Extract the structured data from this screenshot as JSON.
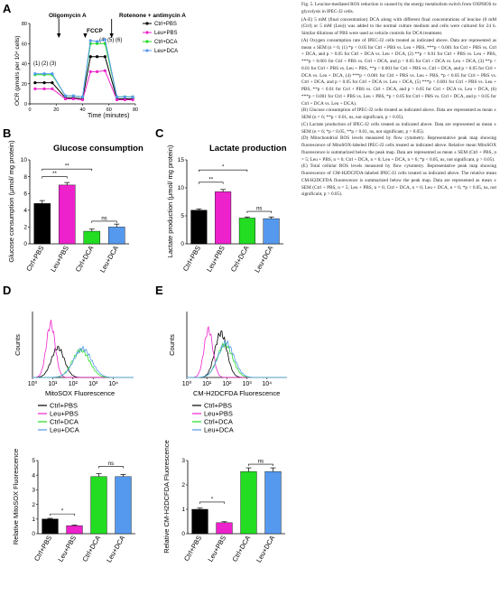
{
  "panels": {
    "A": {
      "letter": "A",
      "annotations": {
        "oligomycin": "Oligomycin A",
        "fccp": "FCCP",
        "rotenone": "Rotenone + antimycin A"
      },
      "points_left": "(1) (2) (3)",
      "points_right": "(4) (5) (6)",
      "ylabel": "OCR (pmol/s per 10⁴ cells)",
      "xlabel": "Time (minutes)",
      "legend": [
        "Ctrl+PBS",
        "Leu+PBS",
        "Ctrl+DCA",
        "Leu+DCA"
      ]
    },
    "B": {
      "letter": "B",
      "title": "Glucose consumption",
      "ylabel": "Glucose consumption (μmol/ mg protein)",
      "sig1": "**",
      "sig2": "**",
      "sig3": "ns"
    },
    "C": {
      "letter": "C",
      "title": "Lactate production",
      "ylabel": "Lactate production (μmol/ mg protein)",
      "sig1": "**",
      "sig2": "*",
      "sig3": "ns"
    },
    "D": {
      "letter": "D",
      "ylabel": "Counts",
      "xlabel": "MitoSOX Fluorescence",
      "bar_ylabel": "Relative MitoSOX Fluorescence",
      "sig1": "*",
      "sig2": "ns"
    },
    "E": {
      "letter": "E",
      "ylabel": "Counts",
      "xlabel": "CM-H2DCFDA Fluorescence",
      "bar_ylabel": "Relative CM-H2DCFDA Fluorescence",
      "sig1": "*",
      "sig2": "ns"
    }
  },
  "legend_ED": [
    "Ctrl+PBS",
    "Leu+PBS",
    "Ctrl+DCA",
    "Leu+DCA"
  ],
  "colors": {
    "ctrl_pbs": "#000000",
    "leu_pbs": "#ee22cc",
    "ctrl_dca": "#22dd22",
    "leu_dca": "#5599ee"
  },
  "caption": {
    "title": "Fig. 5. Leucine-mediated ROS reduction is caused by the energy metabolism switch from OXPHOS to glycolysis in IPEC-J2 cells.",
    "p1": "(A-E) 5 mM (final concentration) DCA along with different final concentrations of leucine (0 mM (Ctrl) or 5 mM (Leu)) was added to the normal culture medium and cells were cultured for 24 h. Similar dilutions of PBS were used as vehicle controls for DCA treatment.",
    "p2": "(A) Oxygen consumption rate of IPEC-J2 cells treated as indicated above. Data are represented as mean ± SEM (n = 6; (1) *p < 0.05 for Ctrl + PBS vs. Leu + PBS, ***p < 0.001 for Ctrl + PBS vs. Ctrl + DCA, and p > 0.05 for Ctrl + DCA vs. Leu + DCA, (2) **p < 0.01 for Ctrl + PBS vs. Leu + PBS, ***p < 0.001 for Ctrl + PBS vs. Ctrl + DCA, and p > 0.05 for Ctrl + DCA vs. Leu + DCA, (3) **p < 0.01 for Ctrl + PBS vs. Leu + PBS, **p < 0.001 for Ctrl + PBS vs. Ctrl + DCA, and p > 0.05 for Ctrl + DCA vs. Leu + DCA, (4) ***p < 0.001 for Ctrl + PBS vs. Leu + PBS, *p < 0.05 for Ctrl + PBS vs. Ctrl + DCA, and p > 0.05 for Ctrl + DCA vs. Leu + DCA, (5) ***p < 0.001 for Ctrl + PBS vs. Leu + PBS, **p < 0.01 for Ctrl + PBS vs. Ctrl + DCA, and p > 0.05 for Ctrl + DCA vs. Leu + DCA, (6) ***p < 0.001 for Ctrl + PBS vs. Leu + PBS, *p < 0.05 for Ctrl + PBS vs. Ctrl + DCA, and p > 0.05 for Ctrl + DCA vs. Leu + DCA).",
    "p3": "(B) Glucose consumption of IPEC-J2 cells treated as indicated above. Data are represented as mean ± SEM (n = 6; **p < 0.01, ns, not significant, p > 0.05).",
    "p4": "(C) Lactate production of IPEC-J2 cells treated as indicated above. Data are represented as mean ± SEM (n = 6; *p < 0.05, **p < 0.01, ns, not significant, p > 0.05).",
    "p5": "(D) Mitochondrial ROS levels measured by flow cytometry. Representative peak map showing fluorescence of MitoSOX-labeled IPEC-J2 cells treated as indicated above. Relative mean MitoSOX fluorescence is summarized below the peak map. Data are represented as mean ± SEM (Ctrl + PBS, n = 5; Leu + PBS, n = 6; Ctrl + DCA, n = 6; Leu + DCA, n = 6; *p < 0.05, ns, not significant, p > 0.05).",
    "p6": "(E) Total cellular ROS levels measured by flow cytometry. Representative peak map showing fluorescence of CM-H2DCFDA-labeled IPEC-J2 cells treated as indicated above. The relative mean CM-H2DCFDA fluorescence is summarized below the peak map. Data are represented as mean ± SEM (Ctrl + PBS, n = 5; Leu + PBS, n = 6; Ctrl + DCA, n = 6; Leu + DCA, n = 6; *p < 0.05, ns, not significant, p > 0.05)."
  },
  "chart_data": [
    {
      "panel": "A",
      "type": "line",
      "x": [
        4,
        11,
        17,
        27,
        33,
        40,
        46,
        51,
        57,
        66,
        72,
        78
      ],
      "xlim": [
        0,
        80
      ],
      "xticks": [
        0,
        20,
        40,
        60,
        80
      ],
      "ylim": [
        0,
        80
      ],
      "yticks": [
        0,
        20,
        40,
        60,
        80
      ],
      "xlabel": "Time (minutes)",
      "ylabel": "OCR (pmol/s per 10⁴ cells)",
      "series": [
        {
          "name": "Ctrl+PBS",
          "values": [
            21,
            21,
            21,
            6,
            6,
            5,
            47,
            47,
            47,
            5,
            5,
            5
          ]
        },
        {
          "name": "Leu+PBS",
          "values": [
            15,
            15,
            15,
            5,
            5,
            4,
            32,
            32,
            33,
            4,
            4,
            4
          ]
        },
        {
          "name": "Ctrl+DCA",
          "values": [
            29,
            29,
            29,
            8,
            8,
            7,
            60,
            60,
            60,
            7,
            7,
            7
          ]
        },
        {
          "name": "Leu+DCA",
          "values": [
            30,
            30,
            30,
            8,
            8,
            7,
            63,
            62,
            64,
            7,
            7,
            7
          ]
        }
      ]
    },
    {
      "panel": "B",
      "type": "bar",
      "categories": [
        "Ctrl+PBS",
        "Leu+PBS",
        "Ctrl+DCA",
        "Leu+DCA"
      ],
      "values": [
        4.8,
        7.0,
        1.5,
        2.0
      ],
      "errors": [
        0.35,
        0.3,
        0.25,
        0.35
      ],
      "title": "Glucose consumption",
      "ylabel": "Glucose consumption (μmol/ mg protein)",
      "ylim": [
        0,
        10
      ],
      "yticks": [
        0,
        2,
        4,
        6,
        8,
        10
      ]
    },
    {
      "panel": "C",
      "type": "bar",
      "categories": [
        "Ctrl+PBS",
        "Leu+PBS",
        "Ctrl+DCA",
        "Leu+DCA"
      ],
      "values": [
        6.0,
        9.3,
        4.6,
        4.5
      ],
      "errors": [
        0.25,
        0.4,
        0.2,
        0.3
      ],
      "title": "Lactate production",
      "ylabel": "Lactate production (μmol/ mg protein)",
      "ylim": [
        0,
        15
      ],
      "yticks": [
        0,
        5,
        10,
        15
      ]
    },
    {
      "panel": "D-hist",
      "type": "line",
      "xscale": "log",
      "xlim": [
        1,
        100000
      ],
      "xticks": [
        "10⁰",
        "10¹",
        "10²",
        "10³",
        "10⁴"
      ],
      "ylim": [
        0,
        80
      ],
      "yticks": [
        0,
        20,
        40,
        60,
        80
      ],
      "xlabel": "MitoSOX Fluorescence",
      "ylabel": "Counts",
      "peaks": [
        {
          "name": "Ctrl+PBS",
          "peak_x": 18,
          "peak_count": 36
        },
        {
          "name": "Leu+PBS",
          "peak_x": 8,
          "peak_count": 65
        },
        {
          "name": "Ctrl+DCA",
          "peak_x": 250,
          "peak_count": 33
        },
        {
          "name": "Leu+DCA",
          "peak_x": 300,
          "peak_count": 35
        }
      ]
    },
    {
      "panel": "D-bar",
      "type": "bar",
      "categories": [
        "Ctrl+PBS",
        "Leu+PBS",
        "Ctrl+DCA",
        "Leu+DCA"
      ],
      "values": [
        1.0,
        0.55,
        3.9,
        3.9
      ],
      "errors": [
        0.05,
        0.04,
        0.2,
        0.15
      ],
      "ylabel": "Relative MitoSOX Fluorescence",
      "ylim": [
        0,
        5
      ],
      "yticks": [
        0,
        1,
        2,
        3,
        4,
        5
      ]
    },
    {
      "panel": "E-hist",
      "type": "line",
      "xscale": "log",
      "xlim": [
        1,
        100000
      ],
      "xticks": [
        "10⁰",
        "10¹",
        "10²",
        "10³",
        "10⁴"
      ],
      "ylim": [
        0,
        80
      ],
      "yticks": [
        0,
        20,
        40,
        60,
        80
      ],
      "xlabel": "CM-H2DCFDA Fluorescence",
      "ylabel": "Counts",
      "peaks": [
        {
          "name": "Ctrl+PBS",
          "peak_x": 50,
          "peak_count": 54
        },
        {
          "name": "Leu+PBS",
          "peak_x": 12,
          "peak_count": 58
        },
        {
          "name": "Ctrl+DCA",
          "peak_x": 80,
          "peak_count": 40
        },
        {
          "name": "Leu+DCA",
          "peak_x": 90,
          "peak_count": 42
        }
      ]
    },
    {
      "panel": "E-bar",
      "type": "bar",
      "categories": [
        "Ctrl+PBS",
        "Leu+PBS",
        "Ctrl+DCA",
        "Leu+DCA"
      ],
      "values": [
        1.0,
        0.45,
        2.55,
        2.55
      ],
      "errors": [
        0.05,
        0.04,
        0.15,
        0.15
      ],
      "ylabel": "Relative CM-H2DCFDA Fluorescence",
      "ylim": [
        0,
        3
      ],
      "yticks": [
        0,
        1,
        2,
        3
      ]
    }
  ]
}
